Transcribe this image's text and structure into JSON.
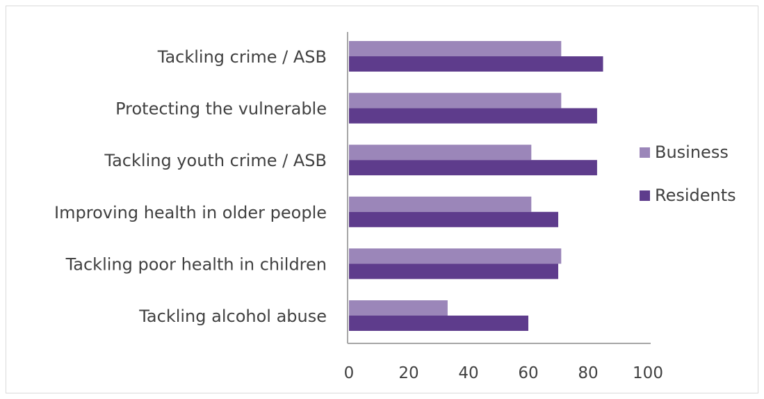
{
  "chart_data": {
    "type": "bar",
    "orientation": "horizontal",
    "title": "",
    "xlabel": "",
    "ylabel": "",
    "categories": [
      "Tackling crime / ASB",
      "Protecting the vulnerable",
      "Tackling youth crime / ASB",
      "Improving health in older people",
      "Tackling poor health in children",
      "Tackling alcohol abuse"
    ],
    "series": [
      {
        "name": "Business",
        "color": "#9b86b9",
        "values": [
          71,
          71,
          61,
          61,
          71,
          33
        ]
      },
      {
        "name": "Residents",
        "color": "#5e3c8c",
        "values": [
          85,
          83,
          83,
          70,
          70,
          60
        ]
      }
    ],
    "xlim": [
      0,
      100
    ],
    "x_ticks": [
      "0",
      "20",
      "40",
      "60",
      "80",
      "100"
    ],
    "grid": false,
    "legend_position": "right"
  }
}
